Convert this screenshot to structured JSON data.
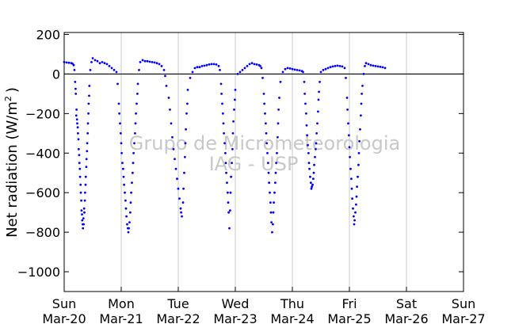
{
  "chart_data": {
    "type": "scatter",
    "title": "",
    "xlabel": "",
    "ylabel": "Net radiation (W/m²)",
    "ylabel_text": "Net radiation (W/m",
    "ylabel_sup": "2",
    "ylabel_close": ")",
    "ylim": [
      -1100,
      210
    ],
    "xlim": [
      "2011-03-20 00:00",
      "2011-03-27 00:00"
    ],
    "yticks": [
      200,
      0,
      -200,
      -400,
      -600,
      -800,
      -1000
    ],
    "ytick_labels": [
      "200",
      "0",
      "−200",
      "−400",
      "−600",
      "−800",
      "−1000"
    ],
    "xticks": [
      {
        "day": "Sun",
        "date": "Mar-20"
      },
      {
        "day": "Mon",
        "date": "Mar-21"
      },
      {
        "day": "Tue",
        "date": "Mar-22"
      },
      {
        "day": "Wed",
        "date": "Mar-23"
      },
      {
        "day": "Thu",
        "date": "Mar-24"
      },
      {
        "day": "Fri",
        "date": "Mar-25"
      },
      {
        "day": "Sat",
        "date": "Mar-26"
      },
      {
        "day": "Sun",
        "date": "Mar-27"
      }
    ],
    "grid": "vertical",
    "zero_line": true,
    "marker_color": "#0000ff",
    "watermark": [
      "Grupo de Micrometeorologia",
      "IAG - USP"
    ],
    "series": [
      {
        "name": "",
        "x_unit": "hours since Mar-20 00:00 (local)",
        "points": [
          [
            0.0,
            60
          ],
          [
            1.0,
            58
          ],
          [
            2.0,
            57
          ],
          [
            3.0,
            55
          ],
          [
            3.5,
            52
          ],
          [
            4.0,
            45
          ],
          [
            4.3,
            20
          ],
          [
            4.6,
            -40
          ],
          [
            4.9,
            -100
          ],
          [
            5.2,
            -180
          ],
          [
            5.5,
            -250
          ],
          [
            5.8,
            -300
          ],
          [
            6.1,
            -380
          ],
          [
            6.4,
            -450
          ],
          [
            6.7,
            -520
          ],
          [
            7.0,
            -600
          ],
          [
            7.3,
            -690
          ],
          [
            7.6,
            -740
          ],
          [
            7.9,
            -780
          ],
          [
            8.2,
            -760
          ],
          [
            8.5,
            -700
          ],
          [
            8.8,
            -600
          ],
          [
            9.1,
            -520
          ],
          [
            9.4,
            -430
          ],
          [
            9.7,
            -350
          ],
          [
            10.0,
            -250
          ],
          [
            10.3,
            -150
          ],
          [
            10.6,
            -60
          ],
          [
            11.0,
            20
          ],
          [
            11.5,
            60
          ],
          [
            12.0,
            80
          ],
          [
            13.0,
            70
          ],
          [
            14.0,
            65
          ],
          [
            15.0,
            55
          ],
          [
            16.0,
            60
          ],
          [
            17.0,
            55
          ],
          [
            18.0,
            50
          ],
          [
            19.0,
            40
          ],
          [
            20.0,
            30
          ],
          [
            21.0,
            20
          ],
          [
            22.0,
            10
          ],
          [
            22.5,
            -50
          ],
          [
            23.0,
            -150
          ],
          [
            23.5,
            -250
          ],
          [
            24.0,
            -350
          ],
          [
            24.5,
            -450
          ],
          [
            25.0,
            -520
          ],
          [
            25.5,
            -600
          ],
          [
            26.0,
            -680
          ],
          [
            26.5,
            -760
          ],
          [
            27.0,
            -800
          ],
          [
            27.5,
            -750
          ],
          [
            28.0,
            -650
          ],
          [
            28.5,
            -550
          ],
          [
            29.0,
            -450
          ],
          [
            29.5,
            -350
          ],
          [
            30.0,
            -250
          ],
          [
            30.5,
            -150
          ],
          [
            31.0,
            -50
          ],
          [
            31.5,
            20
          ],
          [
            32.0,
            60
          ],
          [
            33.0,
            70
          ],
          [
            34.0,
            65
          ],
          [
            35.0,
            65
          ],
          [
            36.0,
            62
          ],
          [
            37.0,
            60
          ],
          [
            38.0,
            58
          ],
          [
            39.0,
            55
          ],
          [
            40.0,
            50
          ],
          [
            41.0,
            40
          ],
          [
            42.0,
            20
          ],
          [
            42.5,
            -10
          ],
          [
            43.0,
            -60
          ],
          [
            44.0,
            -120
          ],
          [
            45.0,
            -250
          ],
          [
            46.0,
            -380
          ],
          [
            47.0,
            -480
          ],
          [
            48.0,
            -580
          ],
          [
            49.0,
            -680
          ],
          [
            49.5,
            -720
          ],
          [
            50.0,
            -650
          ],
          [
            50.5,
            -500
          ],
          [
            51.0,
            -350
          ],
          [
            51.5,
            -200
          ],
          [
            52.0,
            -80
          ],
          [
            53.0,
            -20
          ],
          [
            54.0,
            10
          ],
          [
            55.0,
            30
          ],
          [
            56.0,
            35
          ],
          [
            57.0,
            35
          ],
          [
            58.0,
            40
          ],
          [
            59.0,
            42
          ],
          [
            60.0,
            45
          ],
          [
            61.0,
            48
          ],
          [
            62.0,
            50
          ],
          [
            63.0,
            50
          ],
          [
            64.0,
            48
          ],
          [
            65.0,
            40
          ],
          [
            65.5,
            20
          ],
          [
            66.0,
            -50
          ],
          [
            66.5,
            -150
          ],
          [
            67.0,
            -250
          ],
          [
            67.5,
            -350
          ],
          [
            68.0,
            -450
          ],
          [
            68.5,
            -550
          ],
          [
            69.0,
            -650
          ],
          [
            69.5,
            -780
          ],
          [
            70.0,
            -600
          ],
          [
            70.5,
            -450
          ],
          [
            71.0,
            -300
          ],
          [
            71.5,
            -180
          ],
          [
            72.0,
            -80
          ],
          [
            73.0,
            0
          ],
          [
            74.0,
            10
          ],
          [
            75.0,
            20
          ],
          [
            76.0,
            30
          ],
          [
            77.0,
            40
          ],
          [
            78.0,
            50
          ],
          [
            79.0,
            55
          ],
          [
            80.0,
            50
          ],
          [
            81.0,
            48
          ],
          [
            82.0,
            45
          ],
          [
            82.5,
            40
          ],
          [
            83.0,
            30
          ],
          [
            83.5,
            -20
          ],
          [
            84.0,
            -100
          ],
          [
            84.5,
            -200
          ],
          [
            85.0,
            -300
          ],
          [
            85.5,
            -400
          ],
          [
            86.0,
            -500
          ],
          [
            86.5,
            -600
          ],
          [
            87.0,
            -700
          ],
          [
            87.5,
            -800
          ],
          [
            88.0,
            -700
          ],
          [
            88.5,
            -600
          ],
          [
            89.0,
            -500
          ],
          [
            89.5,
            -400
          ],
          [
            90.0,
            -250
          ],
          [
            90.5,
            -120
          ],
          [
            91.0,
            -40
          ],
          [
            92.0,
            10
          ],
          [
            93.0,
            25
          ],
          [
            94.0,
            30
          ],
          [
            95.0,
            28
          ],
          [
            96.0,
            25
          ],
          [
            97.0,
            22
          ],
          [
            98.0,
            20
          ],
          [
            99.0,
            18
          ],
          [
            100.0,
            15
          ],
          [
            100.5,
            10
          ],
          [
            101.0,
            -40
          ],
          [
            101.5,
            -150
          ],
          [
            102.0,
            -260
          ],
          [
            102.5,
            -360
          ],
          [
            103.0,
            -450
          ],
          [
            103.5,
            -520
          ],
          [
            104.0,
            -580
          ],
          [
            104.5,
            -560
          ],
          [
            105.0,
            -500
          ],
          [
            105.5,
            -420
          ],
          [
            106.0,
            -350
          ],
          [
            106.5,
            -250
          ],
          [
            107.0,
            -130
          ],
          [
            107.5,
            -40
          ],
          [
            108.0,
            10
          ],
          [
            109.0,
            20
          ],
          [
            110.0,
            25
          ],
          [
            111.0,
            30
          ],
          [
            112.0,
            35
          ],
          [
            113.0,
            38
          ],
          [
            114.0,
            40
          ],
          [
            115.0,
            42
          ],
          [
            116.0,
            40
          ],
          [
            117.0,
            38
          ],
          [
            118.0,
            30
          ],
          [
            118.5,
            -20
          ],
          [
            119.0,
            -120
          ],
          [
            119.5,
            -250
          ],
          [
            120.0,
            -370
          ],
          [
            120.5,
            -480
          ],
          [
            121.0,
            -580
          ],
          [
            121.5,
            -680
          ],
          [
            122.0,
            -760
          ],
          [
            122.5,
            -700
          ],
          [
            123.0,
            -620
          ],
          [
            123.5,
            -520
          ],
          [
            124.0,
            -400
          ],
          [
            124.5,
            -280
          ],
          [
            125.0,
            -150
          ],
          [
            125.5,
            -60
          ],
          [
            126.0,
            0
          ],
          [
            126.5,
            40
          ],
          [
            127.0,
            55
          ],
          [
            128.0,
            50
          ],
          [
            129.0,
            45
          ],
          [
            130.0,
            42
          ],
          [
            131.0,
            40
          ],
          [
            132.0,
            38
          ],
          [
            133.0,
            36
          ],
          [
            134.0,
            34
          ],
          [
            135.0,
            30
          ],
          [
            4.8,
            -75
          ],
          [
            5.1,
            -210
          ],
          [
            5.4,
            -230
          ],
          [
            5.7,
            -270
          ],
          [
            6.0,
            -330
          ],
          [
            6.3,
            -410
          ],
          [
            6.6,
            -480
          ],
          [
            6.9,
            -560
          ],
          [
            7.2,
            -640
          ],
          [
            7.5,
            -710
          ],
          [
            7.8,
            -760
          ],
          [
            8.1,
            -730
          ],
          [
            8.4,
            -680
          ],
          [
            8.7,
            -640
          ],
          [
            9.0,
            -560
          ],
          [
            9.3,
            -470
          ],
          [
            9.6,
            -390
          ],
          [
            9.9,
            -300
          ],
          [
            10.2,
            -200
          ],
          [
            10.5,
            -110
          ],
          [
            23.2,
            -200
          ],
          [
            23.8,
            -300
          ],
          [
            24.2,
            -400
          ],
          [
            24.8,
            -480
          ],
          [
            25.2,
            -560
          ],
          [
            25.8,
            -640
          ],
          [
            26.2,
            -720
          ],
          [
            26.8,
            -780
          ],
          [
            27.2,
            -780
          ],
          [
            27.8,
            -700
          ],
          [
            28.2,
            -600
          ],
          [
            28.8,
            -500
          ],
          [
            29.2,
            -400
          ],
          [
            29.8,
            -300
          ],
          [
            30.2,
            -200
          ],
          [
            30.8,
            -100
          ],
          [
            44.5,
            -180
          ],
          [
            45.5,
            -320
          ],
          [
            46.5,
            -430
          ],
          [
            47.5,
            -530
          ],
          [
            48.5,
            -630
          ],
          [
            49.2,
            -700
          ],
          [
            50.2,
            -580
          ],
          [
            50.8,
            -420
          ],
          [
            51.2,
            -280
          ],
          [
            51.8,
            -150
          ],
          [
            66.2,
            -100
          ],
          [
            66.8,
            -200
          ],
          [
            67.2,
            -300
          ],
          [
            67.8,
            -400
          ],
          [
            68.2,
            -500
          ],
          [
            68.8,
            -600
          ],
          [
            69.2,
            -700
          ],
          [
            69.8,
            -690
          ],
          [
            70.2,
            -520
          ],
          [
            70.8,
            -380
          ],
          [
            71.2,
            -240
          ],
          [
            71.8,
            -130
          ],
          [
            84.2,
            -150
          ],
          [
            84.8,
            -250
          ],
          [
            85.2,
            -350
          ],
          [
            85.8,
            -450
          ],
          [
            86.2,
            -550
          ],
          [
            86.8,
            -650
          ],
          [
            87.2,
            -750
          ],
          [
            87.8,
            -760
          ],
          [
            88.2,
            -650
          ],
          [
            88.8,
            -550
          ],
          [
            89.2,
            -450
          ],
          [
            89.8,
            -320
          ],
          [
            90.2,
            -180
          ],
          [
            101.2,
            -100
          ],
          [
            101.8,
            -200
          ],
          [
            102.2,
            -310
          ],
          [
            102.8,
            -400
          ],
          [
            103.2,
            -480
          ],
          [
            103.8,
            -550
          ],
          [
            104.2,
            -570
          ],
          [
            104.8,
            -530
          ],
          [
            105.2,
            -460
          ],
          [
            105.8,
            -380
          ],
          [
            106.2,
            -300
          ],
          [
            106.8,
            -190
          ],
          [
            107.2,
            -90
          ],
          [
            119.2,
            -180
          ],
          [
            119.8,
            -310
          ],
          [
            120.2,
            -420
          ],
          [
            120.8,
            -530
          ],
          [
            121.2,
            -630
          ],
          [
            121.8,
            -720
          ],
          [
            122.2,
            -740
          ],
          [
            122.8,
            -660
          ],
          [
            123.2,
            -570
          ],
          [
            123.8,
            -460
          ],
          [
            124.2,
            -340
          ],
          [
            124.8,
            -210
          ],
          [
            125.2,
            -100
          ]
        ]
      }
    ]
  }
}
